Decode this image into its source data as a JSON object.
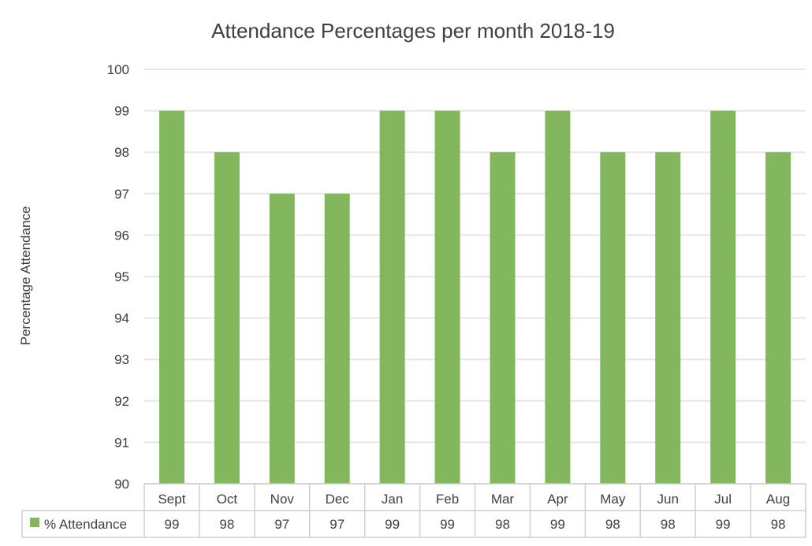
{
  "chart_data": {
    "type": "bar",
    "title": "Attendance Percentages per month 2018-19",
    "ylabel": "Percentage Attendance",
    "xlabel": "",
    "categories": [
      "Sept",
      "Oct",
      "Nov",
      "Dec",
      "Jan",
      "Feb",
      "Mar",
      "Apr",
      "May",
      "Jun",
      "Jul",
      "Aug"
    ],
    "series": [
      {
        "name": "% Attendance",
        "values": [
          99,
          98,
          97,
          97,
          99,
          99,
          98,
          99,
          98,
          98,
          99,
          98
        ],
        "color": "#82b75d"
      }
    ],
    "ylim": [
      90,
      100
    ],
    "yticks": [
      "100",
      "99",
      "98",
      "97",
      "96",
      "95",
      "94",
      "93",
      "92",
      "91",
      "90"
    ],
    "grid": true,
    "data_table": true,
    "legend_placement": "data-table",
    "colors": {
      "bar": "#82b75d",
      "grid": "#e6e6e6",
      "table_border": "#cfcfcf",
      "text": "#404040",
      "title": "#404040"
    }
  }
}
